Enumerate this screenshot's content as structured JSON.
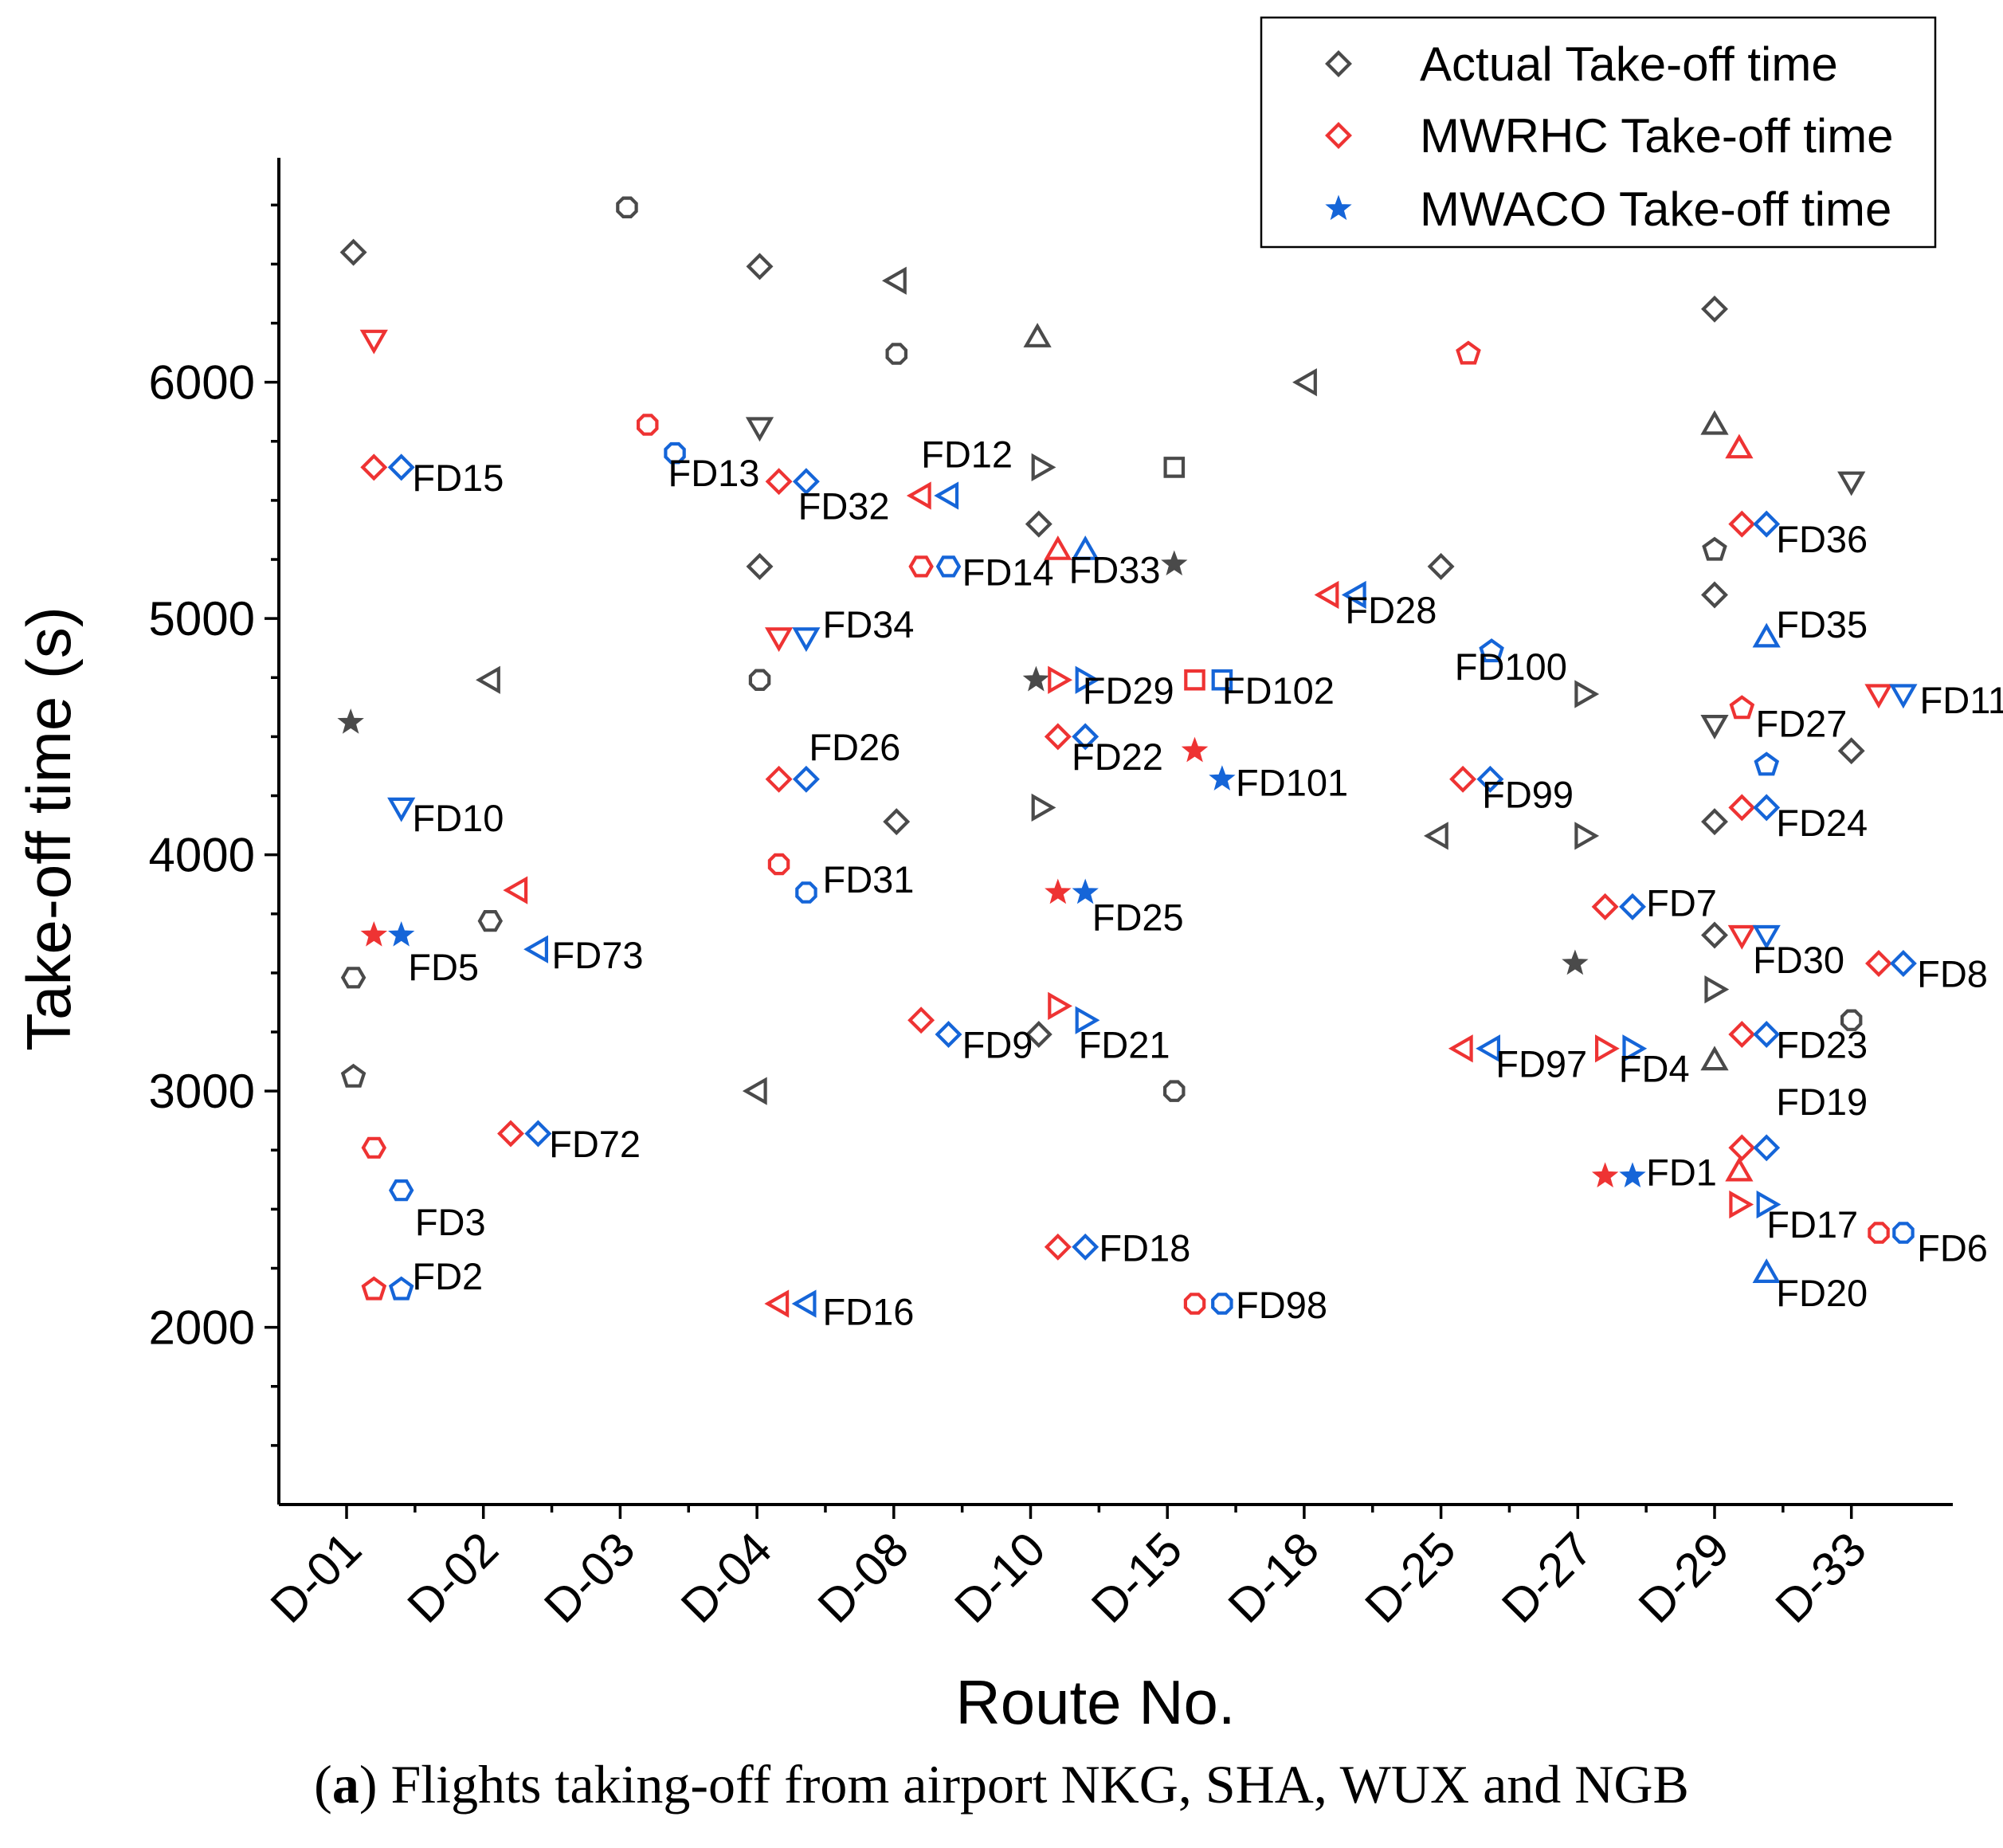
{
  "caption": {
    "prefix": "(",
    "letter": "a",
    "text": ") Flights taking-off from airport NKG, SHA, WUX and NGB"
  },
  "chart_data": {
    "type": "scatter",
    "xlabel": "Route No.",
    "ylabel": "Take-off time (s)",
    "ylim": [
      1250,
      6950
    ],
    "yticks": [
      2000,
      3000,
      4000,
      5000,
      6000
    ],
    "categories": [
      "D-01",
      "D-02",
      "D-03",
      "D-04",
      "D-08",
      "D-10",
      "D-15",
      "D-18",
      "D-25",
      "D-27",
      "D-29",
      "D-33"
    ],
    "colors": {
      "actual": "#4a4a4a",
      "mwrhc": "#ee3333",
      "mwaco": "#1565d8"
    },
    "legend": {
      "position": "top-right",
      "entries": [
        {
          "key": "actual",
          "label": "Actual Take-off time",
          "marker": "diamond"
        },
        {
          "key": "mwrhc",
          "label": "MWRHC Take-off time",
          "marker": "diamond"
        },
        {
          "key": "mwaco",
          "label": "MWACO Take-off time",
          "marker": "star"
        }
      ]
    },
    "actual": [
      {
        "x": 0.05,
        "y": 6550,
        "m": "diamond"
      },
      {
        "x": 0.03,
        "y": 4560,
        "m": "star"
      },
      {
        "x": 0.05,
        "y": 3480,
        "m": "hexagon"
      },
      {
        "x": 0.05,
        "y": 3060,
        "m": "pentagon"
      },
      {
        "x": 1.05,
        "y": 4740,
        "m": "tri-left"
      },
      {
        "x": 1.05,
        "y": 3720,
        "m": "hexagon"
      },
      {
        "x": 2.05,
        "y": 6740,
        "m": "octagon"
      },
      {
        "x": 3.02,
        "y": 6490,
        "m": "diamond"
      },
      {
        "x": 3.02,
        "y": 5810,
        "m": "tri-down"
      },
      {
        "x": 3.02,
        "y": 5220,
        "m": "diamond"
      },
      {
        "x": 3.02,
        "y": 4740,
        "m": "octagon"
      },
      {
        "x": 3.0,
        "y": 3000,
        "m": "tri-left"
      },
      {
        "x": 4.02,
        "y": 6430,
        "m": "tri-left"
      },
      {
        "x": 4.02,
        "y": 6120,
        "m": "octagon"
      },
      {
        "x": 4.02,
        "y": 4140,
        "m": "diamond"
      },
      {
        "x": 5.05,
        "y": 6190,
        "m": "tri-up"
      },
      {
        "x": 5.08,
        "y": 5640,
        "m": "tri-right"
      },
      {
        "x": 5.06,
        "y": 5400,
        "m": "diamond"
      },
      {
        "x": 5.04,
        "y": 4740,
        "m": "star"
      },
      {
        "x": 5.08,
        "y": 4200,
        "m": "tri-right"
      },
      {
        "x": 5.06,
        "y": 3240,
        "m": "diamond"
      },
      {
        "x": 6.05,
        "y": 5640,
        "m": "square"
      },
      {
        "x": 6.05,
        "y": 5230,
        "m": "star"
      },
      {
        "x": 6.05,
        "y": 3000,
        "m": "octagon"
      },
      {
        "x": 7.02,
        "y": 6000,
        "m": "tri-left"
      },
      {
        "x": 8.0,
        "y": 5220,
        "m": "diamond"
      },
      {
        "x": 7.98,
        "y": 4080,
        "m": "tri-left"
      },
      {
        "x": 9.05,
        "y": 4680,
        "m": "tri-right"
      },
      {
        "x": 9.05,
        "y": 4080,
        "m": "tri-right"
      },
      {
        "x": 8.98,
        "y": 3540,
        "m": "star"
      },
      {
        "x": 10.0,
        "y": 6310,
        "m": "diamond"
      },
      {
        "x": 10.0,
        "y": 5820,
        "m": "tri-up"
      },
      {
        "x": 10.0,
        "y": 5290,
        "m": "pentagon"
      },
      {
        "x": 10.0,
        "y": 5100,
        "m": "diamond"
      },
      {
        "x": 10.0,
        "y": 4550,
        "m": "tri-down"
      },
      {
        "x": 10.0,
        "y": 4140,
        "m": "diamond"
      },
      {
        "x": 10.0,
        "y": 3660,
        "m": "diamond"
      },
      {
        "x": 10.0,
        "y": 3430,
        "m": "tri-right"
      },
      {
        "x": 10.0,
        "y": 3130,
        "m": "tri-up"
      },
      {
        "x": 11.0,
        "y": 5580,
        "m": "tri-down"
      },
      {
        "x": 11.0,
        "y": 4440,
        "m": "diamond"
      },
      {
        "x": 11.0,
        "y": 3300,
        "m": "octagon"
      }
    ],
    "flights": [
      {
        "label": "FD15",
        "x1": 0.2,
        "x2": 0.4,
        "y": 5640,
        "m": "diamond",
        "lx": 0.48,
        "ly": 5540
      },
      {
        "label": "FD10",
        "x1": 0.2,
        "x2": 0.4,
        "y": 6180,
        "y2": 4200,
        "m": "tri-down",
        "lx": 0.48,
        "ly": 4100
      },
      {
        "label": "FD5",
        "x1": 0.2,
        "x2": 0.4,
        "y": 3660,
        "m": "star",
        "lx": 0.45,
        "ly": 3470
      },
      {
        "label": "FD3",
        "x1": 0.2,
        "x2": 0.4,
        "y": 2760,
        "y2": 2580,
        "m": "hexagon",
        "lx": 0.5,
        "ly": 2390
      },
      {
        "label": "FD2",
        "x1": 0.2,
        "x2": 0.4,
        "y": 2160,
        "m": "pentagon",
        "lx": 0.48,
        "ly": 2160
      },
      {
        "label": "FD73",
        "x1": 1.25,
        "x2": 1.4,
        "y": 3850,
        "y2": 3600,
        "m": "tri-left",
        "lx": 1.5,
        "ly": 3520
      },
      {
        "label": "FD72",
        "x1": 1.2,
        "x2": 1.4,
        "y": 2820,
        "m": "diamond",
        "lx": 1.48,
        "ly": 2720
      },
      {
        "label": "FD13",
        "x1": 2.2,
        "x2": 2.4,
        "y": 5820,
        "y2": 5700,
        "m": "octagon",
        "lx": 2.35,
        "ly": 5560
      },
      {
        "label": "FD32",
        "x1": 3.16,
        "x2": 3.36,
        "y": 5580,
        "m": "diamond",
        "lx": 3.3,
        "ly": 5420
      },
      {
        "label": "FD34",
        "x1": 3.16,
        "x2": 3.36,
        "y": 4920,
        "m": "tri-down",
        "lx": 3.48,
        "ly": 4920
      },
      {
        "label": "FD26",
        "x1": 3.16,
        "x2": 3.36,
        "y": 4320,
        "m": "diamond",
        "lx": 3.38,
        "ly": 4400
      },
      {
        "label": "FD31",
        "x1": 3.16,
        "x2": 3.36,
        "y": 3960,
        "y2": 3840,
        "m": "octagon",
        "lx": 3.48,
        "ly": 3840
      },
      {
        "label": "FD16",
        "x1": 3.16,
        "x2": 3.36,
        "y": 2100,
        "m": "tri-left",
        "lx": 3.48,
        "ly": 2010
      },
      {
        "label": "FD12",
        "x1": 4.2,
        "x2": 4.4,
        "y": 5520,
        "m": "tri-left",
        "lx": 4.2,
        "ly": 5640
      },
      {
        "label": "FD14",
        "x1": 4.2,
        "x2": 4.4,
        "y": 5220,
        "m": "hexagon",
        "lx": 4.5,
        "ly": 5140
      },
      {
        "label": "FD9",
        "x1": 4.2,
        "x2": 4.4,
        "y": 3300,
        "y2": 3240,
        "m": "diamond",
        "lx": 4.5,
        "ly": 3140
      },
      {
        "label": "FD33",
        "x1": 5.2,
        "x2": 5.4,
        "y": 5290,
        "m": "tri-up",
        "lx": 5.28,
        "ly": 5150
      },
      {
        "label": "FD29",
        "x1": 5.2,
        "x2": 5.4,
        "y": 4740,
        "m": "tri-right",
        "lx": 5.38,
        "ly": 4640
      },
      {
        "label": "FD22",
        "x1": 5.2,
        "x2": 5.4,
        "y": 4500,
        "m": "diamond",
        "lx": 5.3,
        "ly": 4360
      },
      {
        "label": "FD25",
        "x1": 5.2,
        "x2": 5.4,
        "y": 3840,
        "m": "star",
        "lx": 5.45,
        "ly": 3680
      },
      {
        "label": "FD21",
        "x1": 5.2,
        "x2": 5.4,
        "y": 3360,
        "y2": 3300,
        "m": "tri-right",
        "lx": 5.35,
        "ly": 3140
      },
      {
        "label": "FD18",
        "x1": 5.2,
        "x2": 5.4,
        "y": 2340,
        "m": "diamond",
        "lx": 5.5,
        "ly": 2280
      },
      {
        "label": "FD102",
        "x1": 6.2,
        "x2": 6.4,
        "y": 4740,
        "m": "square",
        "lx": 6.4,
        "ly": 4640
      },
      {
        "label": "FD101",
        "x1": 6.2,
        "x2": 6.4,
        "y": 4440,
        "y2": 4320,
        "m": "star",
        "lx": 6.5,
        "ly": 4250
      },
      {
        "label": "FD98",
        "x1": 6.2,
        "x2": 6.4,
        "y": 2100,
        "m": "octagon",
        "lx": 6.5,
        "ly": 2040
      },
      {
        "label": "FD28",
        "x1": 7.18,
        "x2": 7.38,
        "y": 5100,
        "m": "tri-left",
        "lx": 7.3,
        "ly": 4980
      },
      {
        "label": "FD100",
        "x1": 8.2,
        "x2": 8.37,
        "y": 6120,
        "y2": 4860,
        "m": "pentagon",
        "lx": 8.1,
        "ly": 4740
      },
      {
        "label": "FD99",
        "x1": 8.16,
        "x2": 8.36,
        "y": 4320,
        "m": "diamond",
        "lx": 8.3,
        "ly": 4200
      },
      {
        "label": "FD97",
        "x1": 8.16,
        "x2": 8.36,
        "y": 3180,
        "m": "tri-left",
        "lx": 8.4,
        "ly": 3060
      },
      {
        "label": "FD7",
        "x1": 9.2,
        "x2": 9.4,
        "y": 3780,
        "m": "diamond",
        "lx": 9.5,
        "ly": 3740
      },
      {
        "label": "FD4",
        "x1": 9.2,
        "x2": 9.4,
        "y": 3180,
        "m": "tri-right",
        "lx": 9.3,
        "ly": 3040
      },
      {
        "label": "FD1",
        "x1": 9.2,
        "x2": 9.4,
        "y": 2640,
        "m": "star",
        "lx": 9.5,
        "ly": 2600
      },
      {
        "label": "FD36",
        "x1": 10.2,
        "x2": 10.38,
        "y": 5400,
        "m": "diamond",
        "lx": 10.45,
        "ly": 5280
      },
      {
        "label": "FD35",
        "x1": 10.18,
        "x2": 10.38,
        "y": 5720,
        "y2": 4920,
        "m": "tri-up",
        "lx": 10.45,
        "ly": 4920
      },
      {
        "label": "FD27",
        "x1": 10.2,
        "x2": 10.38,
        "y": 4620,
        "y2": 4380,
        "m": "pentagon",
        "lx": 10.3,
        "ly": 4500
      },
      {
        "label": "FD24",
        "x1": 10.2,
        "x2": 10.38,
        "y": 4200,
        "m": "diamond",
        "lx": 10.45,
        "ly": 4080
      },
      {
        "label": "FD30",
        "x1": 10.2,
        "x2": 10.38,
        "y": 3660,
        "m": "tri-down",
        "lx": 10.28,
        "ly": 3500
      },
      {
        "label": "FD23",
        "x1": 10.2,
        "x2": 10.38,
        "y": 3240,
        "m": "diamond",
        "lx": 10.45,
        "ly": 3140
      },
      {
        "label": "FD19",
        "x1": 10.2,
        "x2": 10.38,
        "y": 2760,
        "m": "diamond",
        "lx": 10.45,
        "ly": 2900
      },
      {
        "label": "FD17",
        "x1": 10.18,
        "x2": 10.38,
        "y": 2520,
        "m": "tri-right",
        "lx": 10.38,
        "ly": 2380
      },
      {
        "label": "FD20",
        "x1": 10.18,
        "x2": 10.38,
        "y": 2660,
        "y2": 2230,
        "m": "tri-up",
        "lx": 10.45,
        "ly": 2090
      },
      {
        "label": "FD11",
        "x1": 11.2,
        "x2": 11.38,
        "y": 4680,
        "m": "tri-down",
        "lx": 11.5,
        "ly": 4600
      },
      {
        "label": "FD8",
        "x1": 11.2,
        "x2": 11.38,
        "y": 3540,
        "m": "diamond",
        "lx": 11.48,
        "ly": 3440
      },
      {
        "label": "FD6",
        "x1": 11.2,
        "x2": 11.38,
        "y": 2400,
        "m": "octagon",
        "lx": 11.48,
        "ly": 2280
      }
    ]
  }
}
